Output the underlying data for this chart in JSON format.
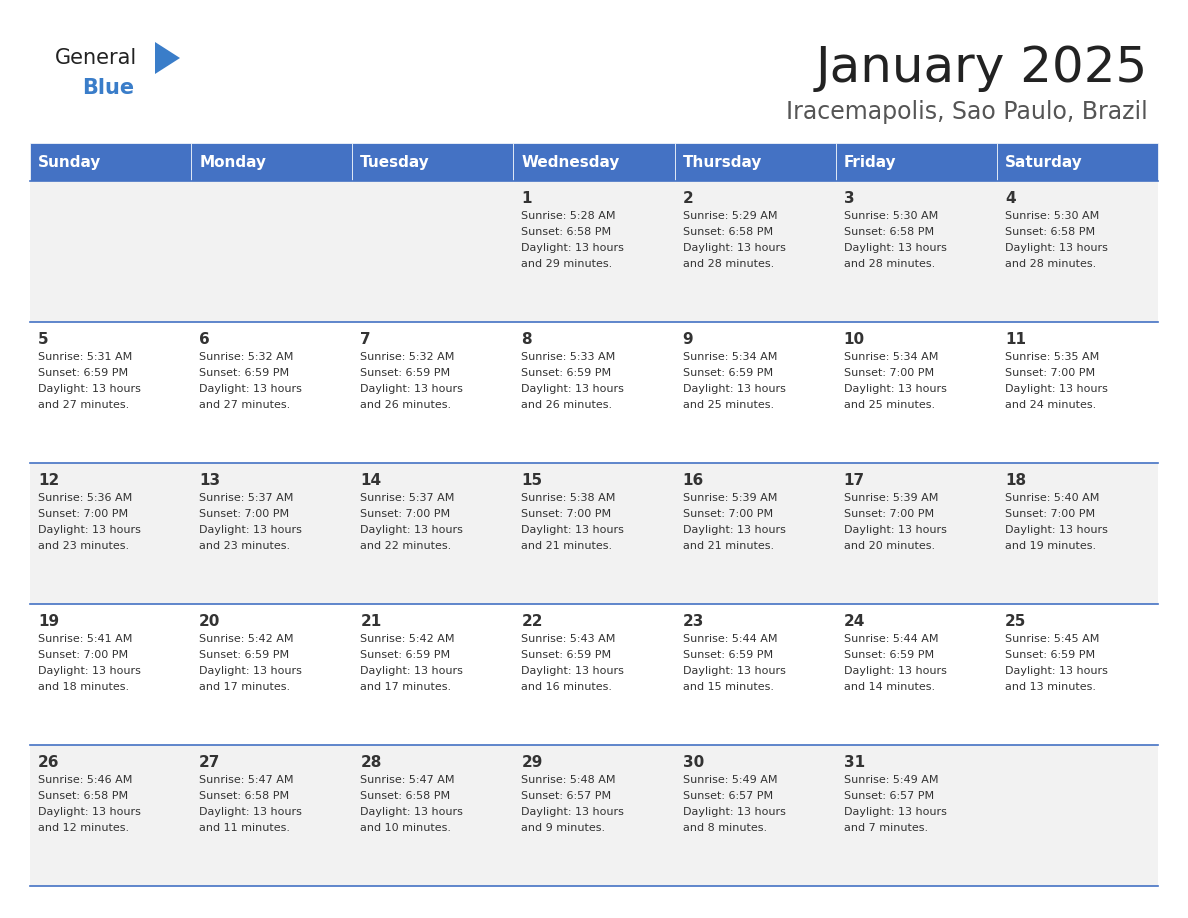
{
  "title": "January 2025",
  "subtitle": "Iracemapolis, Sao Paulo, Brazil",
  "days_of_week": [
    "Sunday",
    "Monday",
    "Tuesday",
    "Wednesday",
    "Thursday",
    "Friday",
    "Saturday"
  ],
  "header_bg": "#4472C4",
  "header_text": "#FFFFFF",
  "row_bg_light": "#F2F2F2",
  "row_bg_white": "#FFFFFF",
  "cell_border": "#4472C4",
  "title_color": "#222222",
  "subtitle_color": "#555555",
  "text_color": "#333333",
  "logo_general_color": "#222222",
  "logo_blue_color": "#3A7DC9",
  "logo_triangle_color": "#3A7DC9",
  "calendar": [
    [
      {
        "day": "",
        "sunrise": "",
        "sunset": "",
        "daylight": ""
      },
      {
        "day": "",
        "sunrise": "",
        "sunset": "",
        "daylight": ""
      },
      {
        "day": "",
        "sunrise": "",
        "sunset": "",
        "daylight": ""
      },
      {
        "day": "1",
        "sunrise": "Sunrise: 5:28 AM",
        "sunset": "Sunset: 6:58 PM",
        "daylight": "Daylight: 13 hours and 29 minutes."
      },
      {
        "day": "2",
        "sunrise": "Sunrise: 5:29 AM",
        "sunset": "Sunset: 6:58 PM",
        "daylight": "Daylight: 13 hours and 28 minutes."
      },
      {
        "day": "3",
        "sunrise": "Sunrise: 5:30 AM",
        "sunset": "Sunset: 6:58 PM",
        "daylight": "Daylight: 13 hours and 28 minutes."
      },
      {
        "day": "4",
        "sunrise": "Sunrise: 5:30 AM",
        "sunset": "Sunset: 6:58 PM",
        "daylight": "Daylight: 13 hours and 28 minutes."
      }
    ],
    [
      {
        "day": "5",
        "sunrise": "Sunrise: 5:31 AM",
        "sunset": "Sunset: 6:59 PM",
        "daylight": "Daylight: 13 hours and 27 minutes."
      },
      {
        "day": "6",
        "sunrise": "Sunrise: 5:32 AM",
        "sunset": "Sunset: 6:59 PM",
        "daylight": "Daylight: 13 hours and 27 minutes."
      },
      {
        "day": "7",
        "sunrise": "Sunrise: 5:32 AM",
        "sunset": "Sunset: 6:59 PM",
        "daylight": "Daylight: 13 hours and 26 minutes."
      },
      {
        "day": "8",
        "sunrise": "Sunrise: 5:33 AM",
        "sunset": "Sunset: 6:59 PM",
        "daylight": "Daylight: 13 hours and 26 minutes."
      },
      {
        "day": "9",
        "sunrise": "Sunrise: 5:34 AM",
        "sunset": "Sunset: 6:59 PM",
        "daylight": "Daylight: 13 hours and 25 minutes."
      },
      {
        "day": "10",
        "sunrise": "Sunrise: 5:34 AM",
        "sunset": "Sunset: 7:00 PM",
        "daylight": "Daylight: 13 hours and 25 minutes."
      },
      {
        "day": "11",
        "sunrise": "Sunrise: 5:35 AM",
        "sunset": "Sunset: 7:00 PM",
        "daylight": "Daylight: 13 hours and 24 minutes."
      }
    ],
    [
      {
        "day": "12",
        "sunrise": "Sunrise: 5:36 AM",
        "sunset": "Sunset: 7:00 PM",
        "daylight": "Daylight: 13 hours and 23 minutes."
      },
      {
        "day": "13",
        "sunrise": "Sunrise: 5:37 AM",
        "sunset": "Sunset: 7:00 PM",
        "daylight": "Daylight: 13 hours and 23 minutes."
      },
      {
        "day": "14",
        "sunrise": "Sunrise: 5:37 AM",
        "sunset": "Sunset: 7:00 PM",
        "daylight": "Daylight: 13 hours and 22 minutes."
      },
      {
        "day": "15",
        "sunrise": "Sunrise: 5:38 AM",
        "sunset": "Sunset: 7:00 PM",
        "daylight": "Daylight: 13 hours and 21 minutes."
      },
      {
        "day": "16",
        "sunrise": "Sunrise: 5:39 AM",
        "sunset": "Sunset: 7:00 PM",
        "daylight": "Daylight: 13 hours and 21 minutes."
      },
      {
        "day": "17",
        "sunrise": "Sunrise: 5:39 AM",
        "sunset": "Sunset: 7:00 PM",
        "daylight": "Daylight: 13 hours and 20 minutes."
      },
      {
        "day": "18",
        "sunrise": "Sunrise: 5:40 AM",
        "sunset": "Sunset: 7:00 PM",
        "daylight": "Daylight: 13 hours and 19 minutes."
      }
    ],
    [
      {
        "day": "19",
        "sunrise": "Sunrise: 5:41 AM",
        "sunset": "Sunset: 7:00 PM",
        "daylight": "Daylight: 13 hours and 18 minutes."
      },
      {
        "day": "20",
        "sunrise": "Sunrise: 5:42 AM",
        "sunset": "Sunset: 6:59 PM",
        "daylight": "Daylight: 13 hours and 17 minutes."
      },
      {
        "day": "21",
        "sunrise": "Sunrise: 5:42 AM",
        "sunset": "Sunset: 6:59 PM",
        "daylight": "Daylight: 13 hours and 17 minutes."
      },
      {
        "day": "22",
        "sunrise": "Sunrise: 5:43 AM",
        "sunset": "Sunset: 6:59 PM",
        "daylight": "Daylight: 13 hours and 16 minutes."
      },
      {
        "day": "23",
        "sunrise": "Sunrise: 5:44 AM",
        "sunset": "Sunset: 6:59 PM",
        "daylight": "Daylight: 13 hours and 15 minutes."
      },
      {
        "day": "24",
        "sunrise": "Sunrise: 5:44 AM",
        "sunset": "Sunset: 6:59 PM",
        "daylight": "Daylight: 13 hours and 14 minutes."
      },
      {
        "day": "25",
        "sunrise": "Sunrise: 5:45 AM",
        "sunset": "Sunset: 6:59 PM",
        "daylight": "Daylight: 13 hours and 13 minutes."
      }
    ],
    [
      {
        "day": "26",
        "sunrise": "Sunrise: 5:46 AM",
        "sunset": "Sunset: 6:58 PM",
        "daylight": "Daylight: 13 hours and 12 minutes."
      },
      {
        "day": "27",
        "sunrise": "Sunrise: 5:47 AM",
        "sunset": "Sunset: 6:58 PM",
        "daylight": "Daylight: 13 hours and 11 minutes."
      },
      {
        "day": "28",
        "sunrise": "Sunrise: 5:47 AM",
        "sunset": "Sunset: 6:58 PM",
        "daylight": "Daylight: 13 hours and 10 minutes."
      },
      {
        "day": "29",
        "sunrise": "Sunrise: 5:48 AM",
        "sunset": "Sunset: 6:57 PM",
        "daylight": "Daylight: 13 hours and 9 minutes."
      },
      {
        "day": "30",
        "sunrise": "Sunrise: 5:49 AM",
        "sunset": "Sunset: 6:57 PM",
        "daylight": "Daylight: 13 hours and 8 minutes."
      },
      {
        "day": "31",
        "sunrise": "Sunrise: 5:49 AM",
        "sunset": "Sunset: 6:57 PM",
        "daylight": "Daylight: 13 hours and 7 minutes."
      },
      {
        "day": "",
        "sunrise": "",
        "sunset": "",
        "daylight": ""
      }
    ]
  ]
}
